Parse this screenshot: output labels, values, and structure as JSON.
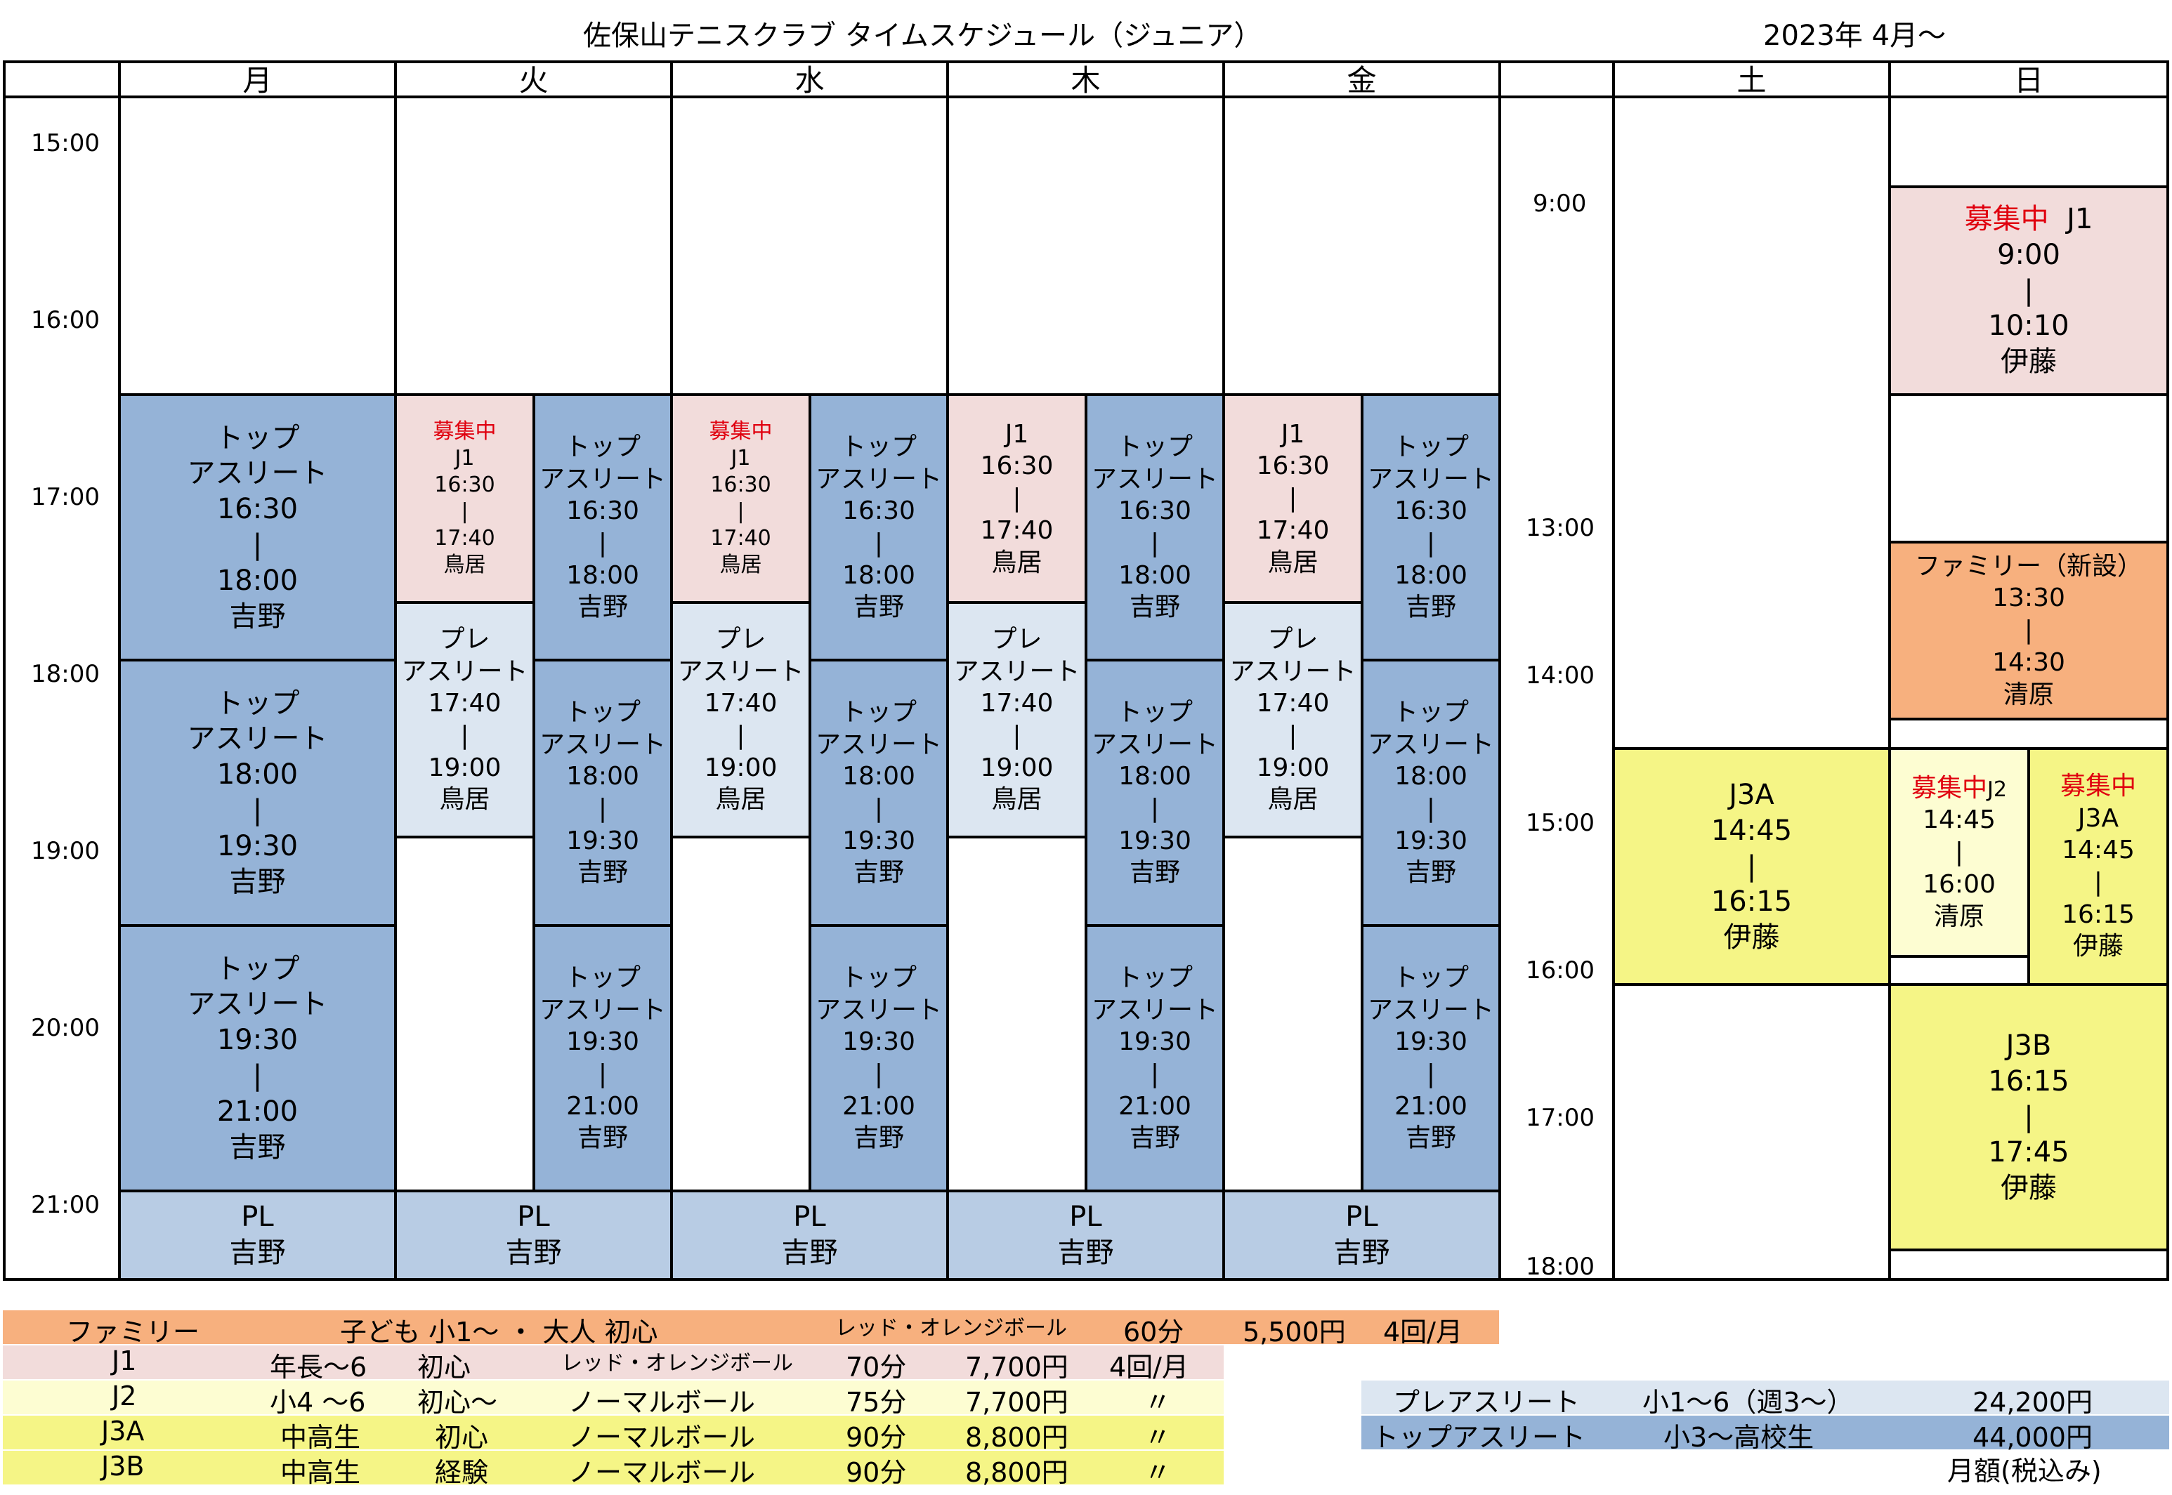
{
  "header": {
    "title": "佐保山テニスクラブ  タイムスケジュール（ジュニア）",
    "date": "2023年  4月～"
  },
  "days": {
    "mon": "月",
    "tue": "火",
    "wed": "水",
    "thu": "木",
    "fri": "金",
    "sat": "土",
    "sun": "日"
  },
  "weekday_times": [
    "15:00",
    "16:00",
    "17:00",
    "18:00",
    "19:00",
    "20:00",
    "21:00"
  ],
  "weekend_times": [
    "9:00",
    "13:00",
    "14:00",
    "15:00",
    "16:00",
    "17:00",
    "18:00"
  ],
  "sep": "|",
  "classes": {
    "top": [
      "トップ",
      "アスリート"
    ],
    "pre": [
      "プレ",
      "アスリート"
    ],
    "recruit": "募集中",
    "j1": "J1",
    "j2": "J2",
    "j3a": "J3A",
    "j3b": "J3B",
    "pl": "PL",
    "family_new": "ファミリー（新設）"
  },
  "times": {
    "t1630": "16:30",
    "t1740": "17:40",
    "t1800": "18:00",
    "t1900": "19:00",
    "t1930": "19:30",
    "t2100": "21:00",
    "t0900": "9:00",
    "t1010": "10:10",
    "t1330": "13:30",
    "t1430": "14:30",
    "t1445": "14:45",
    "t1615": "16:15",
    "t1600": "16:00",
    "t1745": "17:45"
  },
  "coaches": {
    "yoshino": "吉野",
    "torii": "鳥居",
    "ito": "伊藤",
    "kiyohara": "清原"
  },
  "legend": [
    {
      "name": "ファミリー",
      "target": "子ども  小1～  ・  大人  初心",
      "ball": "レッド・オレンジボール",
      "duration": "60分",
      "price": "5,500円",
      "freq": "4回/月",
      "color": "#f7b07e"
    },
    {
      "name": "J1",
      "target": "年長～6",
      "level": "初心",
      "ball": "レッド・オレンジボール",
      "duration": "70分",
      "price": "7,700円",
      "freq": "4回/月",
      "color": "#f2dcdb"
    },
    {
      "name": "J2",
      "target": "小4 ～6",
      "level": "初心～",
      "ball": "ノーマルボール",
      "duration": "75分",
      "price": "7,700円",
      "freq": "〃",
      "color": "#fdfdd2"
    },
    {
      "name": "J3A",
      "target": "中高生",
      "level": "初心",
      "ball": "ノーマルボール",
      "duration": "90分",
      "price": "8,800円",
      "freq": "〃",
      "color": "#f5f586"
    },
    {
      "name": "J3B",
      "target": "中高生",
      "level": "経験",
      "ball": "ノーマルボール",
      "duration": "90分",
      "price": "8,800円",
      "freq": "〃",
      "color": "#f5f586"
    }
  ],
  "athlete_prices": [
    {
      "name": "プレアスリート",
      "target": "小1～6（週3～）",
      "price": "24,200円",
      "color": "#dce6f1"
    },
    {
      "name": "トップアスリート",
      "target": "小3～高校生",
      "price": "44,000円",
      "color": "#95b3d7"
    }
  ],
  "monthly_note": "月額(税込み)"
}
